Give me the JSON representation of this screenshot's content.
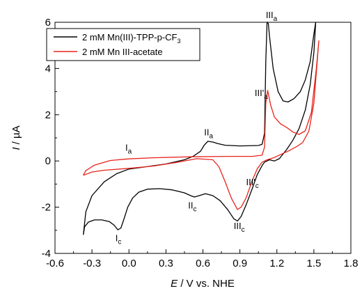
{
  "chart_data": {
    "type": "line",
    "title": "",
    "xlabel_italic": "E",
    "xlabel_rest": " / V vs. NHE",
    "ylabel_italic": "I",
    "ylabel_rest": " / µA",
    "xlim": [
      -0.6,
      1.8
    ],
    "ylim": [
      -4,
      6
    ],
    "xticks": [
      -0.6,
      -0.3,
      0.0,
      0.3,
      0.6,
      0.9,
      1.2,
      1.5,
      1.8
    ],
    "xtick_labels": [
      "-0.6",
      "-0.3",
      "0.0",
      "0.3",
      "0.6",
      "0.9",
      "1.2",
      "1.5",
      "1.8"
    ],
    "yticks": [
      -4,
      -2,
      0,
      2,
      4,
      6
    ],
    "ytick_labels": [
      "-4",
      "-2",
      "0",
      "2",
      "4",
      "6"
    ],
    "legend_position": "top-left",
    "series": [
      {
        "name": "2 mM Mn(III)-TPP-p-CF",
        "name_sub": "3",
        "color": "#000000",
        "points": [
          [
            -0.37,
            -3.2
          ],
          [
            -0.36,
            -2.85
          ],
          [
            -0.33,
            -2.65
          ],
          [
            -0.28,
            -2.55
          ],
          [
            -0.22,
            -2.55
          ],
          [
            -0.16,
            -2.62
          ],
          [
            -0.12,
            -2.78
          ],
          [
            -0.09,
            -2.98
          ],
          [
            -0.065,
            -2.9
          ],
          [
            -0.04,
            -2.5
          ],
          [
            -0.01,
            -2.0
          ],
          [
            0.03,
            -1.6
          ],
          [
            0.08,
            -1.35
          ],
          [
            0.15,
            -1.22
          ],
          [
            0.25,
            -1.2
          ],
          [
            0.35,
            -1.25
          ],
          [
            0.45,
            -1.38
          ],
          [
            0.5,
            -1.5
          ],
          [
            0.53,
            -1.56
          ],
          [
            0.57,
            -1.5
          ],
          [
            0.62,
            -1.42
          ],
          [
            0.68,
            -1.5
          ],
          [
            0.74,
            -1.72
          ],
          [
            0.8,
            -2.1
          ],
          [
            0.85,
            -2.5
          ],
          [
            0.88,
            -2.6
          ],
          [
            0.91,
            -2.4
          ],
          [
            0.95,
            -1.9
          ],
          [
            1.0,
            -1.2
          ],
          [
            1.04,
            -0.6
          ],
          [
            1.08,
            -0.2
          ],
          [
            1.1,
            -0.05
          ],
          [
            1.14,
            0.05
          ],
          [
            1.18,
            0.0
          ],
          [
            1.22,
            0.1
          ],
          [
            1.28,
            0.5
          ],
          [
            1.33,
            0.9
          ],
          [
            1.38,
            1.4
          ],
          [
            1.43,
            2.2
          ],
          [
            1.47,
            3.3
          ],
          [
            1.5,
            4.7
          ],
          [
            1.515,
            6.0
          ],
          [
            1.5,
            5.5
          ],
          [
            1.47,
            4.3
          ],
          [
            1.43,
            3.5
          ],
          [
            1.39,
            3.0
          ],
          [
            1.34,
            2.7
          ],
          [
            1.29,
            2.55
          ],
          [
            1.25,
            2.6
          ],
          [
            1.21,
            3.0
          ],
          [
            1.17,
            4.0
          ],
          [
            1.14,
            5.4
          ],
          [
            1.13,
            5.95
          ],
          [
            1.12,
            6.0
          ],
          [
            1.11,
            4.3
          ],
          [
            1.1,
            1.2
          ],
          [
            1.08,
            0.72
          ],
          [
            1.05,
            0.67
          ],
          [
            0.9,
            0.65
          ],
          [
            0.78,
            0.68
          ],
          [
            0.72,
            0.75
          ],
          [
            0.68,
            0.82
          ],
          [
            0.64,
            0.85
          ],
          [
            0.61,
            0.68
          ],
          [
            0.58,
            0.42
          ],
          [
            0.52,
            0.2
          ],
          [
            0.45,
            0.05
          ],
          [
            0.3,
            -0.13
          ],
          [
            0.1,
            -0.28
          ],
          [
            0.0,
            -0.35
          ],
          [
            -0.1,
            -0.55
          ],
          [
            -0.2,
            -0.9
          ],
          [
            -0.3,
            -1.5
          ],
          [
            -0.35,
            -2.2
          ],
          [
            -0.37,
            -3.2
          ]
        ]
      },
      {
        "name": "2 mM Mn III-acetate",
        "name_sub": "",
        "color": "#e8231b",
        "points": [
          [
            -0.37,
            -0.62
          ],
          [
            -0.3,
            -0.48
          ],
          [
            -0.2,
            -0.4
          ],
          [
            0.0,
            -0.32
          ],
          [
            0.2,
            -0.22
          ],
          [
            0.4,
            -0.05
          ],
          [
            0.55,
            0.1
          ],
          [
            0.68,
            0.05
          ],
          [
            0.73,
            -0.25
          ],
          [
            0.78,
            -0.9
          ],
          [
            0.83,
            -1.6
          ],
          [
            0.88,
            -2.1
          ],
          [
            0.91,
            -2.0
          ],
          [
            0.95,
            -1.6
          ],
          [
            1.0,
            -0.85
          ],
          [
            1.04,
            -0.35
          ],
          [
            1.08,
            -0.05
          ],
          [
            1.12,
            0.05
          ],
          [
            1.18,
            0.15
          ],
          [
            1.24,
            0.3
          ],
          [
            1.3,
            0.45
          ],
          [
            1.36,
            0.62
          ],
          [
            1.41,
            0.8
          ],
          [
            1.46,
            1.3
          ],
          [
            1.5,
            2.5
          ],
          [
            1.54,
            5.2
          ],
          [
            1.52,
            4.0
          ],
          [
            1.48,
            2.1
          ],
          [
            1.43,
            1.3
          ],
          [
            1.38,
            1.15
          ],
          [
            1.33,
            1.25
          ],
          [
            1.28,
            1.45
          ],
          [
            1.23,
            1.6
          ],
          [
            1.18,
            1.9
          ],
          [
            1.15,
            2.4
          ],
          [
            1.125,
            3.05
          ],
          [
            1.11,
            2.5
          ],
          [
            1.1,
            0.6
          ],
          [
            1.08,
            0.25
          ],
          [
            1.0,
            0.2
          ],
          [
            0.8,
            0.2
          ],
          [
            0.5,
            0.18
          ],
          [
            0.2,
            0.14
          ],
          [
            0.0,
            0.09
          ],
          [
            -0.15,
            0.02
          ],
          [
            -0.28,
            -0.18
          ],
          [
            -0.35,
            -0.42
          ],
          [
            -0.37,
            -0.62
          ]
        ]
      }
    ],
    "annotations": [
      {
        "main": "III",
        "sub": "a",
        "x": 1.11,
        "y": 6.18
      },
      {
        "main": "III'",
        "sub": "a",
        "x": 1.02,
        "y": 2.8
      },
      {
        "main": "II",
        "sub": "a",
        "x": 0.61,
        "y": 1.1
      },
      {
        "main": "I",
        "sub": "a",
        "x": -0.03,
        "y": 0.45
      },
      {
        "main": "III'",
        "sub": "c",
        "x": 0.95,
        "y": -1.05
      },
      {
        "main": "II",
        "sub": "c",
        "x": 0.48,
        "y": -2.05
      },
      {
        "main": "III",
        "sub": "c",
        "x": 0.85,
        "y": -2.95
      },
      {
        "main": "I",
        "sub": "c",
        "x": -0.11,
        "y": -3.48
      }
    ]
  }
}
